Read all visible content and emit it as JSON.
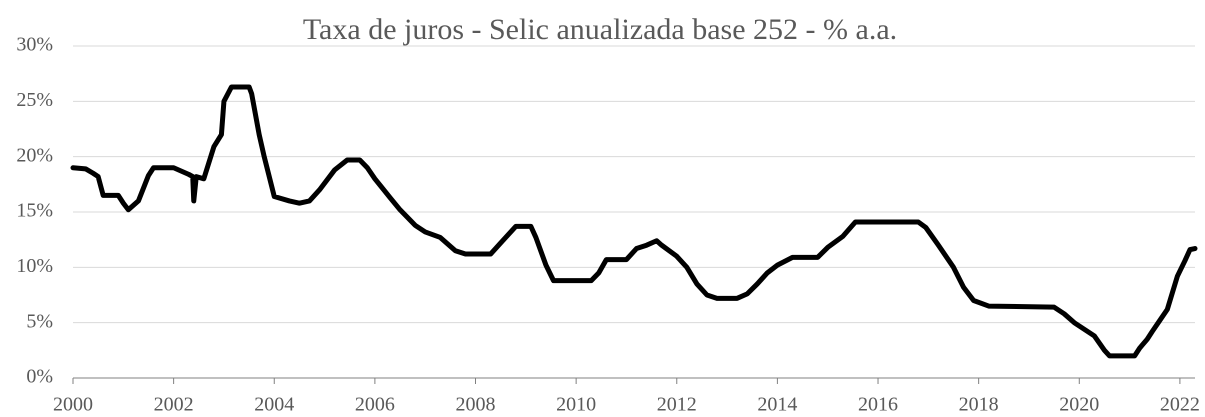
{
  "chart_data": {
    "type": "line",
    "title": "Taxa de juros - Selic anualizada base 252 - % a.a.",
    "x": [
      2000.0,
      2000.25,
      2000.4,
      2000.5,
      2000.6,
      2000.9,
      2001.0,
      2001.1,
      2001.3,
      2001.5,
      2001.6,
      2002.0,
      2002.3,
      2002.38,
      2002.4,
      2002.45,
      2002.6,
      2002.8,
      2002.95,
      2003.0,
      2003.15,
      2003.5,
      2003.55,
      2003.7,
      2003.8,
      2003.95,
      2004.0,
      2004.3,
      2004.5,
      2004.7,
      2004.9,
      2005.2,
      2005.45,
      2005.7,
      2005.85,
      2006.0,
      2006.3,
      2006.5,
      2006.8,
      2007.0,
      2007.3,
      2007.6,
      2007.8,
      2008.3,
      2008.5,
      2008.7,
      2008.8,
      2009.1,
      2009.2,
      2009.4,
      2009.55,
      2010.3,
      2010.45,
      2010.6,
      2011.0,
      2011.2,
      2011.4,
      2011.6,
      2011.7,
      2012.0,
      2012.2,
      2012.4,
      2012.6,
      2012.8,
      2013.2,
      2013.4,
      2013.6,
      2013.8,
      2014.0,
      2014.3,
      2014.8,
      2015.0,
      2015.3,
      2015.55,
      2016.8,
      2016.95,
      2017.2,
      2017.5,
      2017.7,
      2017.9,
      2018.2,
      2019.5,
      2019.7,
      2019.9,
      2020.1,
      2020.3,
      2020.5,
      2020.6,
      2021.1,
      2021.2,
      2021.35,
      2021.45,
      2021.6,
      2021.75,
      2021.85,
      2021.95,
      2022.1,
      2022.2,
      2022.3
    ],
    "series": [
      {
        "color": "#000000",
        "values": [
          19.0,
          18.9,
          18.5,
          18.2,
          16.5,
          16.5,
          15.8,
          15.2,
          16.0,
          18.3,
          19.0,
          19.0,
          18.4,
          18.2,
          16.0,
          18.2,
          18.0,
          20.9,
          22.0,
          25.0,
          26.3,
          26.3,
          25.7,
          22.0,
          20.0,
          17.3,
          16.4,
          16.0,
          15.8,
          16.0,
          17.0,
          18.8,
          19.7,
          19.7,
          19.0,
          18.0,
          16.3,
          15.2,
          13.8,
          13.2,
          12.7,
          11.5,
          11.2,
          11.2,
          12.2,
          13.2,
          13.7,
          13.7,
          12.7,
          10.2,
          8.8,
          8.8,
          9.5,
          10.7,
          10.7,
          11.7,
          12.0,
          12.4,
          12.0,
          11.0,
          10.0,
          8.5,
          7.5,
          7.2,
          7.2,
          7.6,
          8.5,
          9.5,
          10.2,
          10.9,
          10.9,
          11.8,
          12.8,
          14.1,
          14.1,
          13.6,
          12.0,
          10.0,
          8.2,
          7.0,
          6.5,
          6.4,
          5.8,
          5.0,
          4.4,
          3.8,
          2.5,
          2.0,
          2.0,
          2.7,
          3.5,
          4.2,
          5.2,
          6.2,
          7.7,
          9.2,
          10.6,
          11.6,
          11.7
        ]
      }
    ],
    "xlim": [
      2000,
      2022.3
    ],
    "xticks": [
      2000,
      2002,
      2004,
      2006,
      2008,
      2010,
      2012,
      2014,
      2016,
      2018,
      2020,
      2022
    ],
    "ylim": [
      0,
      30
    ],
    "yticks": [
      {
        "value": 0,
        "label": "0%"
      },
      {
        "value": 5,
        "label": "5%"
      },
      {
        "value": 10,
        "label": "10%"
      },
      {
        "value": 15,
        "label": "15%"
      },
      {
        "value": 20,
        "label": "20%"
      },
      {
        "value": 25,
        "label": "25%"
      },
      {
        "value": 30,
        "label": "30%"
      }
    ],
    "grid": true
  }
}
